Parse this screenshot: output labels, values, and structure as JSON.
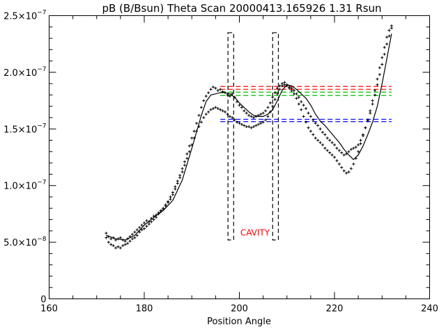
{
  "chart_data": {
    "type": "scatter",
    "title": "pB (B/Bsun) Theta Scan 20000413.165926 1.31 Rsun",
    "xlabel": "Position Angle",
    "ylabel": "",
    "xlim": [
      160,
      240
    ],
    "ylim": [
      0,
      2.5e-07
    ],
    "x_ticks": [
      {
        "value": 160,
        "label": "160"
      },
      {
        "value": 180,
        "label": "180"
      },
      {
        "value": 200,
        "label": "200"
      },
      {
        "value": 220,
        "label": "220"
      },
      {
        "value": 240,
        "label": "240"
      }
    ],
    "x_minor_step": 5,
    "y_ticks": [
      {
        "value": 0,
        "mantissa": "0",
        "exponent": ""
      },
      {
        "value": 5e-08,
        "mantissa": "5.0×10",
        "exponent": "−8"
      },
      {
        "value": 1e-07,
        "mantissa": "1.0×10",
        "exponent": "−7"
      },
      {
        "value": 1.5e-07,
        "mantissa": "1.5×10",
        "exponent": "−7"
      },
      {
        "value": 2e-07,
        "mantissa": "2.0×10",
        "exponent": "−7"
      },
      {
        "value": 2.5e-07,
        "mantissa": "2.5×10",
        "exponent": "−7"
      }
    ],
    "y_minor_step": 1e-08,
    "grid": false,
    "series": [
      {
        "style": "points",
        "marker": "+",
        "color": "#000000",
        "x": [
          172.0,
          172.5,
          173.0,
          173.5,
          174.0,
          174.5,
          175.0,
          175.5,
          176.0,
          176.5,
          177.0,
          177.5,
          178.0,
          178.5,
          179.0,
          179.5,
          180.0,
          180.5,
          181.0,
          181.5,
          182.0,
          182.5,
          183.0,
          183.5,
          184.0,
          184.5,
          185.0,
          185.5,
          186.0,
          186.5,
          187.0,
          187.5,
          188.0,
          188.5,
          189.0,
          189.5,
          190.0,
          190.5,
          191.0,
          191.5,
          192.0,
          192.5,
          193.0,
          193.5,
          194.0,
          194.5,
          195.0,
          195.5,
          196.0,
          196.5,
          197.0,
          197.5,
          198.0,
          198.5,
          199.0,
          199.5,
          200.0,
          200.5,
          201.0,
          201.5,
          202.0,
          202.5,
          203.0,
          203.5,
          204.0,
          204.5,
          205.0,
          205.5,
          206.0,
          206.5,
          207.0,
          207.5,
          208.0,
          208.5,
          209.0,
          209.5,
          210.0,
          210.5,
          211.0,
          211.5,
          212.0,
          212.5,
          213.0,
          213.5,
          214.0,
          214.5,
          215.0,
          215.5,
          216.0,
          216.5,
          217.0,
          217.5,
          218.0,
          218.5,
          219.0,
          219.5,
          220.0,
          220.5,
          221.0,
          221.5,
          222.0,
          222.5,
          223.0,
          223.5,
          224.0,
          224.5,
          225.0,
          225.5,
          226.0,
          226.5,
          227.0,
          227.5,
          228.0,
          228.5,
          229.0,
          229.5,
          230.0,
          230.5,
          231.0,
          231.5,
          232.0
        ],
        "y": [
          5.8e-08,
          5.5e-08,
          5.3e-08,
          5.4e-08,
          5.2e-08,
          5.3e-08,
          5.4e-08,
          5.2e-08,
          5.1e-08,
          5.3e-08,
          5.5e-08,
          5.7e-08,
          5.9e-08,
          6.1e-08,
          6.3e-08,
          6.5e-08,
          6.7e-08,
          6.9e-08,
          6.8e-08,
          7.1e-08,
          7.3e-08,
          7.4e-08,
          7.6e-08,
          7.8e-08,
          8e-08,
          8.3e-08,
          8.6e-08,
          9e-08,
          9.4e-08,
          9.9e-08,
          1.04e-07,
          1.09e-07,
          1.15e-07,
          1.21e-07,
          1.28e-07,
          1.35e-07,
          1.42e-07,
          1.48e-07,
          1.55e-07,
          1.62e-07,
          1.69e-07,
          1.75e-07,
          1.79e-07,
          1.82e-07,
          1.85e-07,
          1.87e-07,
          1.86e-07,
          1.84e-07,
          1.85e-07,
          1.83e-07,
          1.82e-07,
          1.8e-07,
          1.79e-07,
          1.81e-07,
          1.78e-07,
          1.74e-07,
          1.71e-07,
          1.69e-07,
          1.66e-07,
          1.64e-07,
          1.62e-07,
          1.61e-07,
          1.6e-07,
          1.61e-07,
          1.62e-07,
          1.63e-07,
          1.64e-07,
          1.66e-07,
          1.69e-07,
          1.73e-07,
          1.78e-07,
          1.82e-07,
          1.86e-07,
          1.88e-07,
          1.9e-07,
          1.91e-07,
          1.89e-07,
          1.87e-07,
          1.86e-07,
          1.84e-07,
          1.81e-07,
          1.78e-07,
          1.74e-07,
          1.71e-07,
          1.68e-07,
          1.64e-07,
          1.61e-07,
          1.58e-07,
          1.55e-07,
          1.53e-07,
          1.5e-07,
          1.47e-07,
          1.45e-07,
          1.42e-07,
          1.4e-07,
          1.38e-07,
          1.36e-07,
          1.33e-07,
          1.31e-07,
          1.29e-07,
          1.27e-07,
          1.28e-07,
          1.3e-07,
          1.32e-07,
          1.33e-07,
          1.34e-07,
          1.36e-07,
          1.4e-07,
          1.45e-07,
          1.51e-07,
          1.57e-07,
          1.64e-07,
          1.72e-07,
          1.8e-07,
          1.89e-07,
          1.98e-07,
          2.07e-07,
          2.16e-07,
          2.25e-07,
          2.32e-07,
          2.39e-07
        ]
      },
      {
        "style": "points",
        "marker": "+",
        "color": "#000000",
        "x": [
          172.0,
          172.5,
          173.0,
          173.5,
          174.0,
          174.5,
          175.0,
          175.5,
          176.0,
          176.5,
          177.0,
          177.5,
          178.0,
          178.5,
          179.0,
          179.5,
          180.0,
          180.5,
          181.0,
          181.5,
          182.0,
          182.5,
          183.0,
          183.5,
          184.0,
          184.5,
          185.0,
          185.5,
          186.0,
          186.5,
          187.0,
          187.5,
          188.0,
          188.5,
          189.0,
          189.5,
          190.0,
          190.5,
          191.0,
          191.5,
          192.0,
          192.5,
          193.0,
          193.5,
          194.0,
          194.5,
          195.0,
          195.5,
          196.0,
          196.5,
          197.0,
          197.5,
          198.0,
          198.5,
          199.0,
          199.5,
          200.0,
          200.5,
          201.0,
          201.5,
          202.0,
          202.5,
          203.0,
          203.5,
          204.0,
          204.5,
          205.0,
          205.5,
          206.0,
          206.5,
          207.0,
          207.5,
          208.0,
          208.5,
          209.0,
          209.5,
          210.0,
          210.5,
          211.0,
          211.5,
          212.0,
          212.5,
          213.0,
          213.5,
          214.0,
          214.5,
          215.0,
          215.5,
          216.0,
          216.5,
          217.0,
          217.5,
          218.0,
          218.5,
          219.0,
          219.5,
          220.0,
          220.5,
          221.0,
          221.5,
          222.0,
          222.5,
          223.0,
          223.5,
          224.0,
          224.5,
          225.0,
          225.5,
          226.0,
          226.5,
          227.0,
          227.5,
          228.0,
          228.5,
          229.0,
          229.5,
          230.0,
          230.5,
          231.0,
          231.5,
          232.0
        ],
        "y": [
          5.4e-08,
          5e-08,
          4.8e-08,
          4.7e-08,
          4.5e-08,
          4.6e-08,
          4.5e-08,
          4.7e-08,
          4.8e-08,
          4.9e-08,
          5.1e-08,
          5.3e-08,
          5.4e-08,
          5.6e-08,
          5.9e-08,
          6.1e-08,
          6.2e-08,
          6.4e-08,
          6.6e-08,
          6.8e-08,
          7e-08,
          7.2e-08,
          7.5e-08,
          7.7e-08,
          7.9e-08,
          8.2e-08,
          8.5e-08,
          8.8e-08,
          9.2e-08,
          9.7e-08,
          1.02e-07,
          1.07e-07,
          1.12e-07,
          1.18e-07,
          1.24e-07,
          1.3e-07,
          1.36e-07,
          1.42e-07,
          1.48e-07,
          1.52e-07,
          1.56e-07,
          1.6e-07,
          1.63e-07,
          1.65e-07,
          1.67e-07,
          1.68e-07,
          1.69e-07,
          1.68e-07,
          1.67e-07,
          1.66e-07,
          1.65e-07,
          1.63e-07,
          1.61e-07,
          1.6e-07,
          1.58e-07,
          1.56e-07,
          1.55e-07,
          1.54e-07,
          1.53e-07,
          1.52e-07,
          1.52e-07,
          1.51e-07,
          1.52e-07,
          1.53e-07,
          1.54e-07,
          1.55e-07,
          1.56e-07,
          1.58e-07,
          1.61e-07,
          1.65e-07,
          1.7e-07,
          1.76e-07,
          1.81e-07,
          1.85e-07,
          1.88e-07,
          1.89e-07,
          1.88e-07,
          1.86e-07,
          1.84e-07,
          1.81e-07,
          1.77e-07,
          1.72e-07,
          1.67e-07,
          1.61e-07,
          1.56e-07,
          1.51e-07,
          1.48e-07,
          1.45e-07,
          1.42e-07,
          1.4e-07,
          1.38e-07,
          1.36e-07,
          1.33e-07,
          1.31e-07,
          1.29e-07,
          1.27e-07,
          1.25e-07,
          1.22e-07,
          1.19e-07,
          1.16e-07,
          1.13e-07,
          1.11e-07,
          1.12e-07,
          1.15e-07,
          1.19e-07,
          1.24e-07,
          1.3e-07,
          1.37e-07,
          1.44e-07,
          1.51e-07,
          1.58e-07,
          1.66e-07,
          1.75e-07,
          1.84e-07,
          1.94e-07,
          2.04e-07,
          2.13e-07,
          2.22e-07,
          2.31e-07,
          2.37e-07,
          2.41e-07
        ]
      },
      {
        "style": "line",
        "color": "#000000",
        "x": [
          172,
          174,
          176,
          178,
          180,
          182,
          184,
          186,
          188,
          190,
          192,
          193,
          194,
          195,
          196,
          197,
          198,
          199,
          200,
          201,
          202,
          203,
          204,
          205,
          206,
          207,
          208,
          209,
          210,
          211,
          212,
          213,
          214,
          215,
          216,
          217,
          218,
          219,
          220,
          221,
          222,
          223,
          224,
          225,
          226,
          227,
          228,
          229,
          230,
          231,
          232
        ],
        "y": [
          5.6e-08,
          5.3e-08,
          5.2e-08,
          5.6e-08,
          6.5e-08,
          7.2e-08,
          7.8e-08,
          8.7e-08,
          1.05e-07,
          1.33e-07,
          1.62e-07,
          1.74e-07,
          1.8e-07,
          1.81e-07,
          1.82e-07,
          1.82e-07,
          1.81e-07,
          1.78e-07,
          1.73e-07,
          1.69e-07,
          1.65e-07,
          1.62e-07,
          1.61e-07,
          1.61e-07,
          1.63e-07,
          1.67e-07,
          1.75e-07,
          1.84e-07,
          1.89e-07,
          1.88e-07,
          1.85e-07,
          1.81e-07,
          1.77e-07,
          1.71e-07,
          1.63e-07,
          1.57e-07,
          1.53e-07,
          1.48e-07,
          1.43e-07,
          1.38e-07,
          1.32e-07,
          1.27e-07,
          1.23e-07,
          1.27e-07,
          1.35e-07,
          1.45e-07,
          1.56e-07,
          1.7e-07,
          1.9e-07,
          2.12e-07,
          2.34e-07
        ]
      }
    ],
    "hlines": [
      {
        "y": 1.875e-07,
        "color": "#ff0000",
        "style": "dashed"
      },
      {
        "y": 1.85e-07,
        "color": "#ff0000",
        "style": "dashed"
      },
      {
        "y": 1.825e-07,
        "color": "#00c000",
        "style": "dashed"
      },
      {
        "y": 1.795e-07,
        "color": "#00c000",
        "style": "dashed"
      },
      {
        "y": 1.585e-07,
        "color": "#0000ff",
        "style": "dashed"
      },
      {
        "y": 1.565e-07,
        "color": "#0000ff",
        "style": "dashed"
      }
    ],
    "hline_range": [
      196,
      232
    ],
    "boxes": [
      {
        "x0": 197.6,
        "x1": 198.8,
        "y0": 5.2e-08,
        "y1": 2.35e-07,
        "style": "dashed"
      },
      {
        "x0": 207.0,
        "x1": 208.2,
        "y0": 5.2e-08,
        "y1": 2.35e-07,
        "style": "dashed"
      }
    ],
    "annotations": [
      {
        "text": "CAVITY",
        "x": 200.2,
        "y": 5.6e-08,
        "color": "#ff0000"
      }
    ]
  }
}
